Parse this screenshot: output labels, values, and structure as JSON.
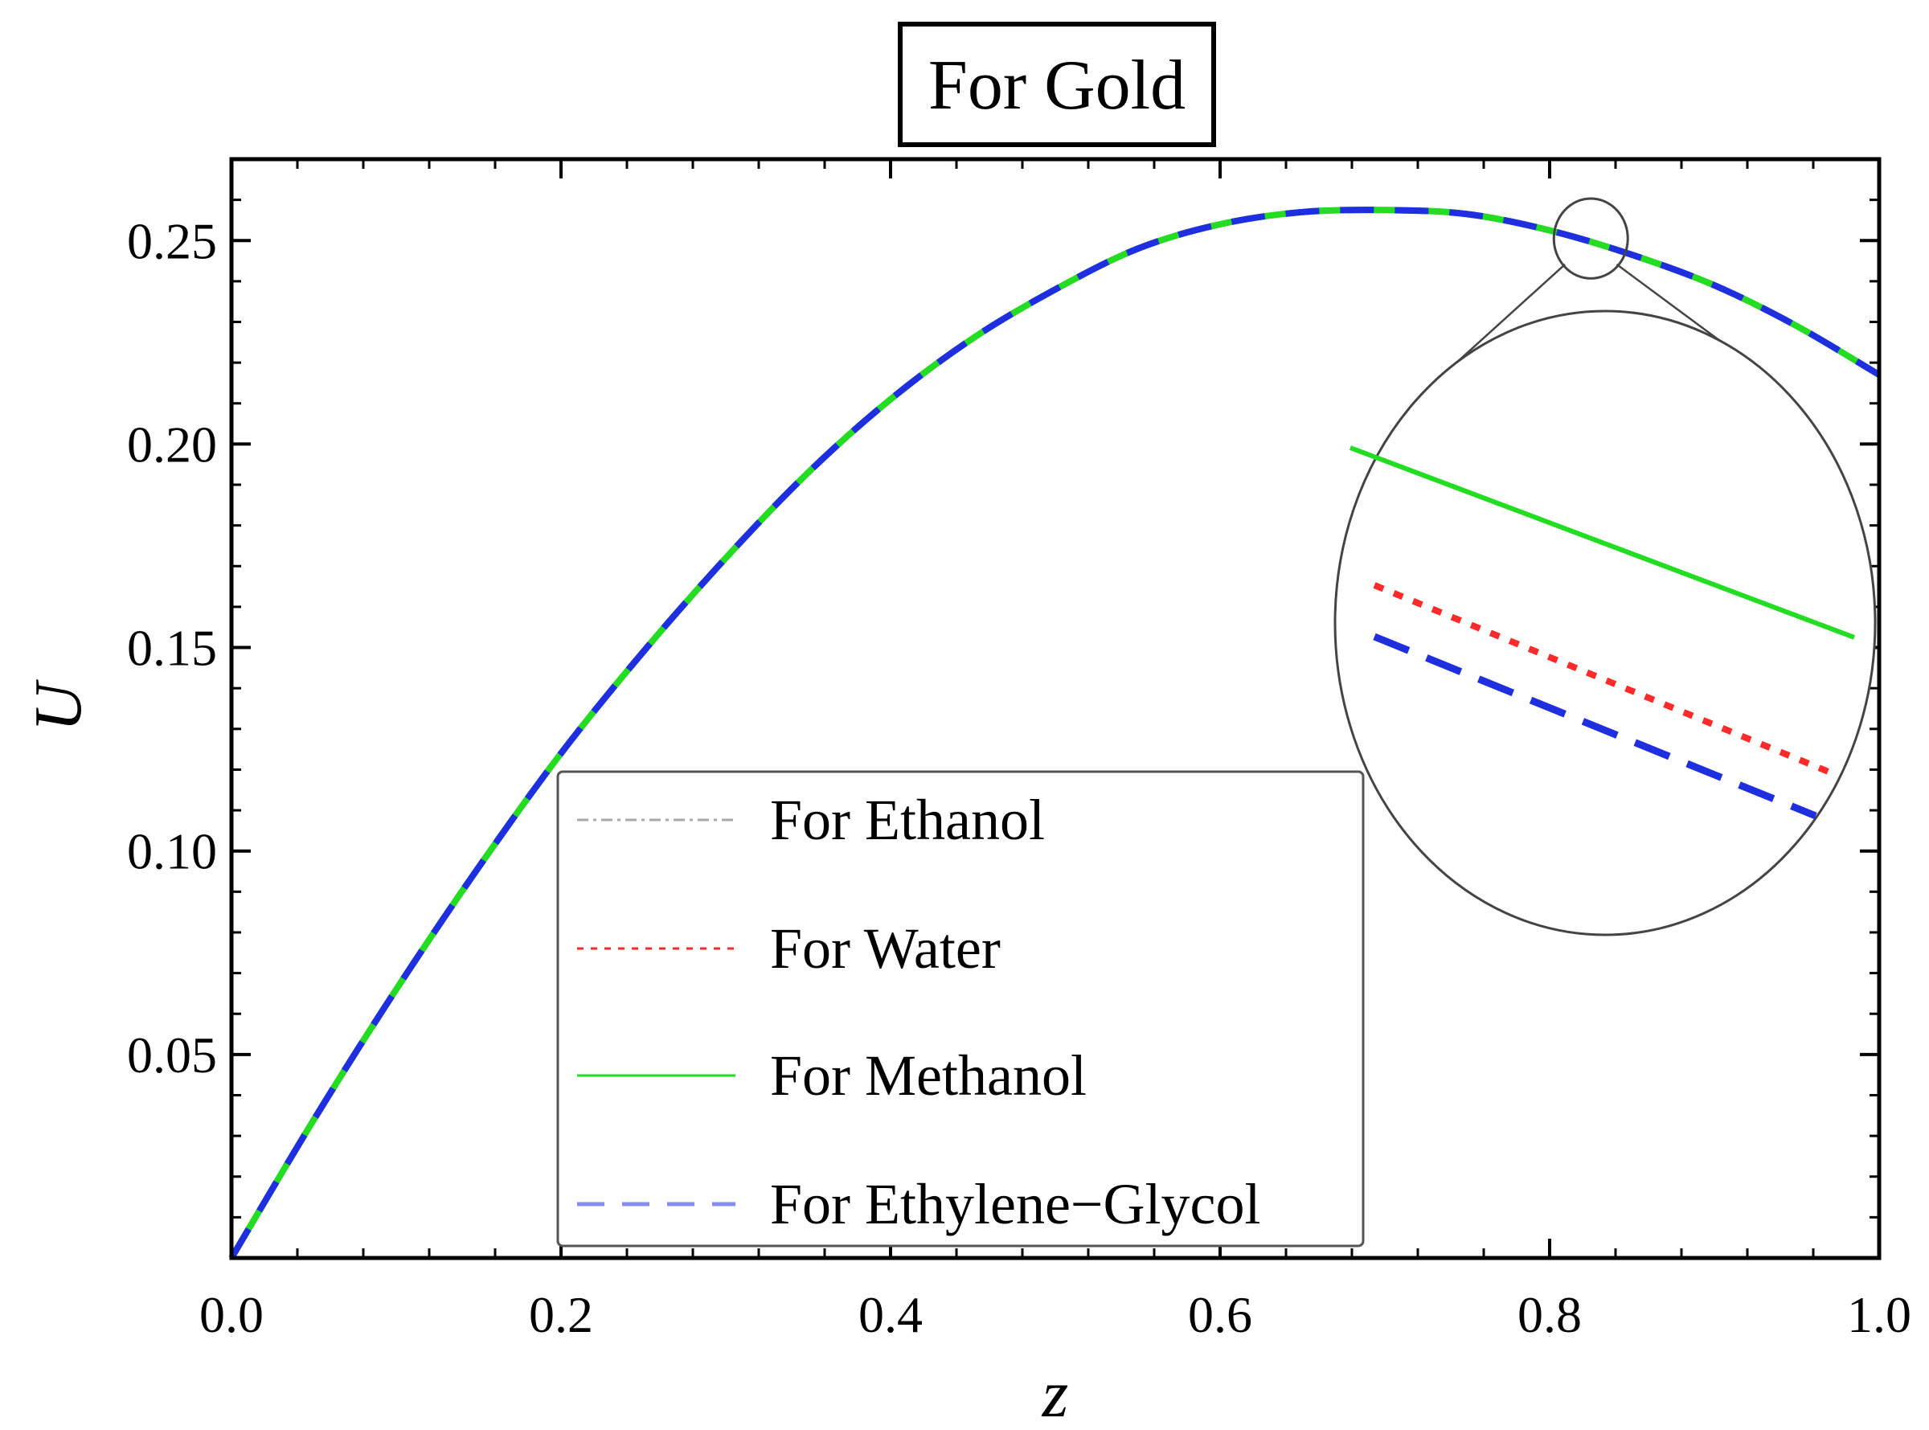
{
  "chart_data": {
    "type": "line",
    "title": "For Gold",
    "xlabel": "z",
    "ylabel": "U",
    "xlim": [
      0.0,
      1.0
    ],
    "ylim": [
      0.0,
      0.27
    ],
    "x_ticks": [
      "0.0",
      "0.2",
      "0.4",
      "0.6",
      "0.8",
      "1.0"
    ],
    "y_ticks": [
      "0.05",
      "0.10",
      "0.15",
      "0.20",
      "0.25"
    ],
    "legend_position": "bottom-center",
    "x": [
      0.0,
      0.05,
      0.1,
      0.15,
      0.2,
      0.25,
      0.3,
      0.35,
      0.4,
      0.45,
      0.5,
      0.55,
      0.6,
      0.65,
      0.7,
      0.75,
      0.8,
      0.85,
      0.9,
      0.95,
      1.0
    ],
    "series": [
      {
        "name": "For Ethanol",
        "color": "#a9a9a9",
        "style": "dot-dash",
        "values": [
          0.0,
          0.034,
          0.066,
          0.096,
          0.124,
          0.149,
          0.172,
          0.193,
          0.211,
          0.226,
          0.238,
          0.248,
          0.254,
          0.257,
          0.2575,
          0.2565,
          0.2525,
          0.2465,
          0.239,
          0.229,
          0.217
        ]
      },
      {
        "name": "For Water",
        "color": "#ff2a2a",
        "style": "dotted",
        "values": [
          0.0,
          0.034,
          0.066,
          0.096,
          0.124,
          0.149,
          0.172,
          0.193,
          0.211,
          0.226,
          0.238,
          0.248,
          0.254,
          0.257,
          0.2575,
          0.2565,
          0.2525,
          0.2465,
          0.239,
          0.229,
          0.217
        ]
      },
      {
        "name": "For Methanol",
        "color": "#22dd22",
        "style": "solid",
        "values": [
          0.0,
          0.034,
          0.066,
          0.096,
          0.124,
          0.149,
          0.172,
          0.193,
          0.211,
          0.226,
          0.238,
          0.248,
          0.254,
          0.257,
          0.2575,
          0.2565,
          0.2525,
          0.2465,
          0.239,
          0.229,
          0.217
        ]
      },
      {
        "name": "For Ethylene−Glycol",
        "color": "#1f2fe0",
        "style": "dashed",
        "values": [
          0.0,
          0.034,
          0.066,
          0.096,
          0.124,
          0.149,
          0.172,
          0.193,
          0.211,
          0.226,
          0.238,
          0.248,
          0.254,
          0.257,
          0.2575,
          0.2565,
          0.2525,
          0.2465,
          0.239,
          0.229,
          0.217
        ]
      }
    ],
    "inset": {
      "kind": "zoom-magnifier",
      "center_x": 0.825,
      "center_y": 0.2505,
      "note": "magnified view separates Methanol (top), Water (middle), Ethylene-Glycol (bottom)"
    }
  }
}
